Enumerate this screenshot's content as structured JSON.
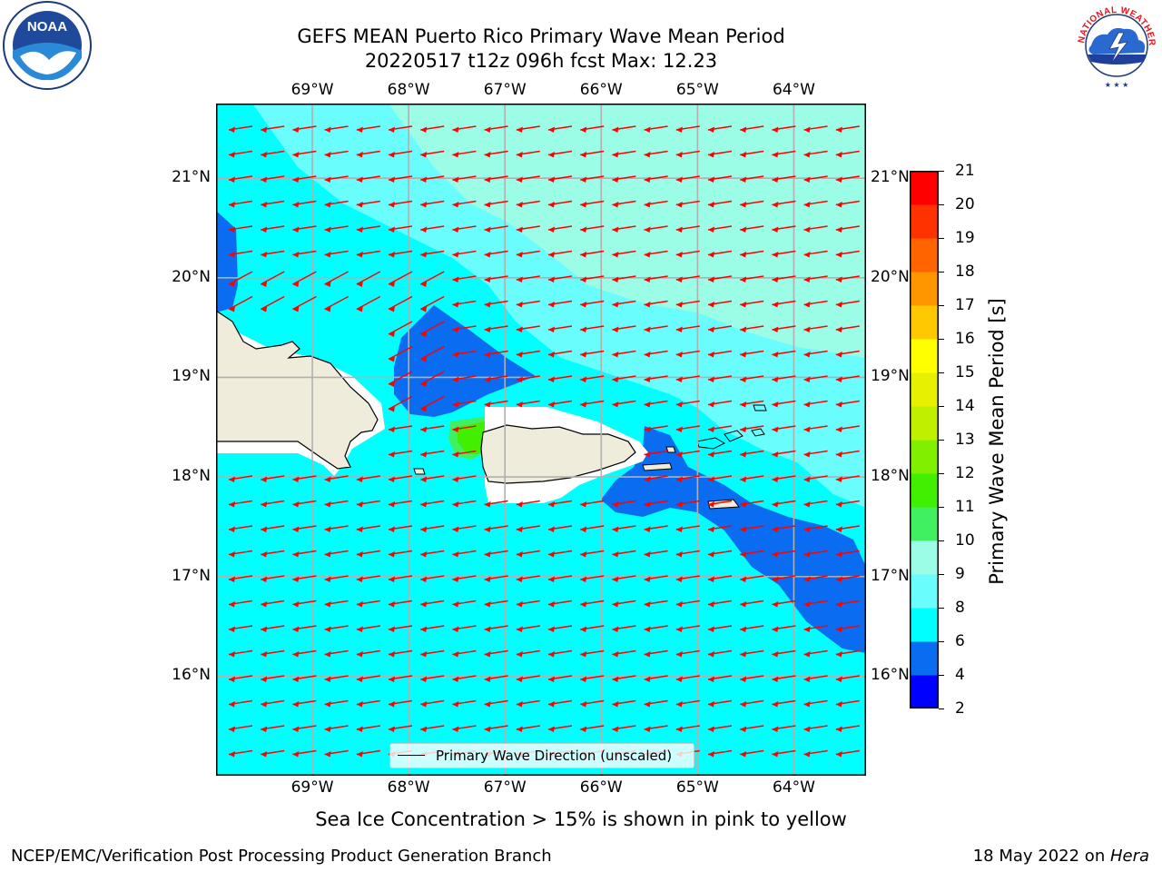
{
  "title": {
    "line1": "GEFS MEAN Puerto Rico Primary Wave Mean Period",
    "line2": "20220517 t12z 096h fcst   Max: 12.23"
  },
  "map": {
    "lon_labels": [
      "69°W",
      "68°W",
      "67°W",
      "66°W",
      "65°W",
      "64°W"
    ],
    "lat_labels": [
      "21°N",
      "20°N",
      "19°N",
      "18°N",
      "17°N",
      "16°N"
    ],
    "lon_values": [
      -69,
      -68,
      -67,
      -66,
      -65,
      -64
    ],
    "lat_values": [
      21,
      20,
      19,
      18,
      17,
      16
    ],
    "lon_range": [
      -70,
      -63.25
    ],
    "lat_range": [
      15.0,
      21.75
    ],
    "grid": true,
    "arrow_color": "#ff0000",
    "arrow_direction": "toward west with slight southward component"
  },
  "legend": {
    "label": "Primary Wave Direction (unscaled)",
    "placement": "lower-center"
  },
  "colorbar": {
    "title": "Primary Wave Mean Period [s]",
    "ticks": [
      "21",
      "20",
      "19",
      "18",
      "17",
      "16",
      "15",
      "14",
      "13",
      "12",
      "11",
      "10",
      "9",
      "8",
      "6",
      "4",
      "2"
    ],
    "levels": [
      2,
      4,
      6,
      8,
      9,
      10,
      11,
      12,
      13,
      14,
      15,
      16,
      17,
      18,
      19,
      20,
      21
    ],
    "colors": [
      "#0000ff",
      "#0a6cf0",
      "#00ffff",
      "#6afdfd",
      "#9bfde6",
      "#40f060",
      "#40f000",
      "#80f000",
      "#bff000",
      "#e6f000",
      "#ffff00",
      "#ffc800",
      "#ff9600",
      "#ff6400",
      "#ff3200",
      "#ff0000"
    ]
  },
  "note": "Sea Ice Concentration > 15% is shown in pink to yellow",
  "footer": {
    "left": "NCEP/EMC/Verification Post Processing Product Generation Branch",
    "right_prefix": "18 May 2022 on ",
    "right_italic": "Hera"
  },
  "logos": {
    "left_text": "NOAA",
    "right_text": "NATIONAL WEATHER SERVICE",
    "left_icon": "noaa-logo",
    "right_icon": "nws-logo"
  },
  "chart_data": {
    "type": "heatmap",
    "title": "GEFS MEAN Puerto Rico Primary Wave Mean Period",
    "subtitle": "20220517 t12z 096h fcst   Max: 12.23",
    "xlabel": "",
    "ylabel": "",
    "colorbar_label": "Primary Wave Mean Period [s]",
    "xlim": [
      -70,
      -63.25
    ],
    "ylim": [
      15.0,
      21.75
    ],
    "max_value": 12.23,
    "levels": [
      2,
      4,
      6,
      8,
      9,
      10,
      11,
      12,
      13,
      14,
      15,
      16,
      17,
      18,
      19,
      20,
      21
    ]
  }
}
